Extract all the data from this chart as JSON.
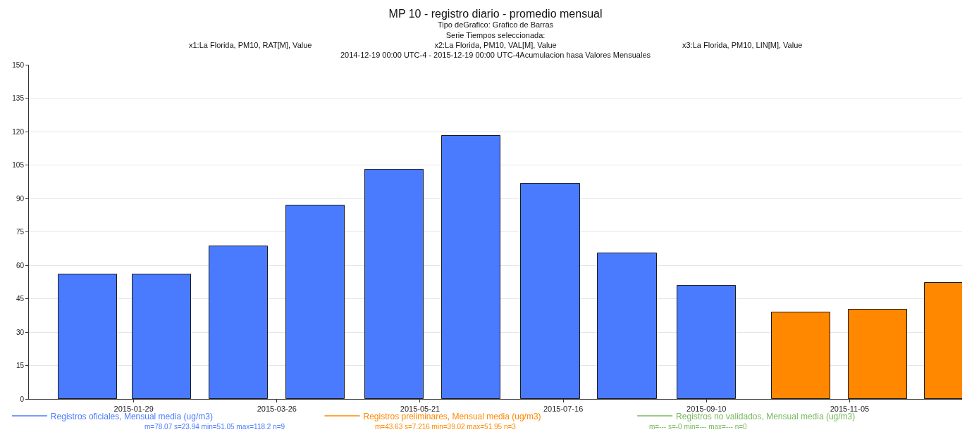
{
  "chart_data": {
    "type": "bar",
    "title": "MP 10 - registro diario - promedio mensual",
    "subtitle": "Tipo deGrafico: Grafico de Barras\nSerie Tiempos seleccionada:\nx2:La Florida, PM10, VAL[M], Value\n2014-12-19 00:00 UTC-4 - 2015-12-19 00:00 UTC-4Acumulacion hasa Valores Mensuales",
    "annotations": [
      "x1:La Florida, PM10, RAT[M], Value",
      "x3:La Florida, PM10, LIN[M], Value",
      "m=78.07 s=23.94 min=51.05 max=118.2 n=9",
      "m=43.63 s=7.216 min=39.02 max=51.95 n=3",
      "m=--- s=-0 min=--- max=--- n=0"
    ],
    "series": [
      {
        "name": "Registros oficiales, Mensual media (ug/m3)",
        "color": "#4a7bff",
        "x": [
          "2015-01-11",
          "2015-02-09",
          "2015-03-11",
          "2015-04-10",
          "2015-05-11",
          "2015-06-10",
          "2015-07-11",
          "2015-08-10",
          "2015-09-10"
        ],
        "values": [
          56,
          56,
          68.5,
          87,
          103,
          118,
          96.5,
          65.5,
          51
        ]
      },
      {
        "name": "Registros preliminares, Mensual media (ug/m3)",
        "color": "#ff8800",
        "x": [
          "2015-10-17",
          "2015-11-16",
          "2015-12-16"
        ],
        "values": [
          39,
          40,
          52
        ]
      },
      {
        "name": "Registros no validados, Mensual media (ug/m3)",
        "color": "#77b95a"
      }
    ],
    "xlim": [
      "2014-12-19",
      "2015-12-19"
    ],
    "xticks": [
      {
        "value": "2015-01-29",
        "label": "2015-01-29"
      },
      {
        "value": "2015-03-26",
        "label": "2015-03-26"
      },
      {
        "value": "2015-05-21",
        "label": "2015-05-21"
      },
      {
        "value": "2015-07-16",
        "label": "2015-07-16"
      },
      {
        "value": "2015-09-10",
        "label": "2015-09-10"
      },
      {
        "value": "2015-11-05",
        "label": "2015-11-05"
      }
    ],
    "ylim": [
      0,
      150
    ],
    "yticks": [
      0,
      15,
      30,
      45,
      60,
      75,
      90,
      105,
      120,
      135,
      150
    ],
    "grid": "y",
    "legend": "bottom"
  }
}
